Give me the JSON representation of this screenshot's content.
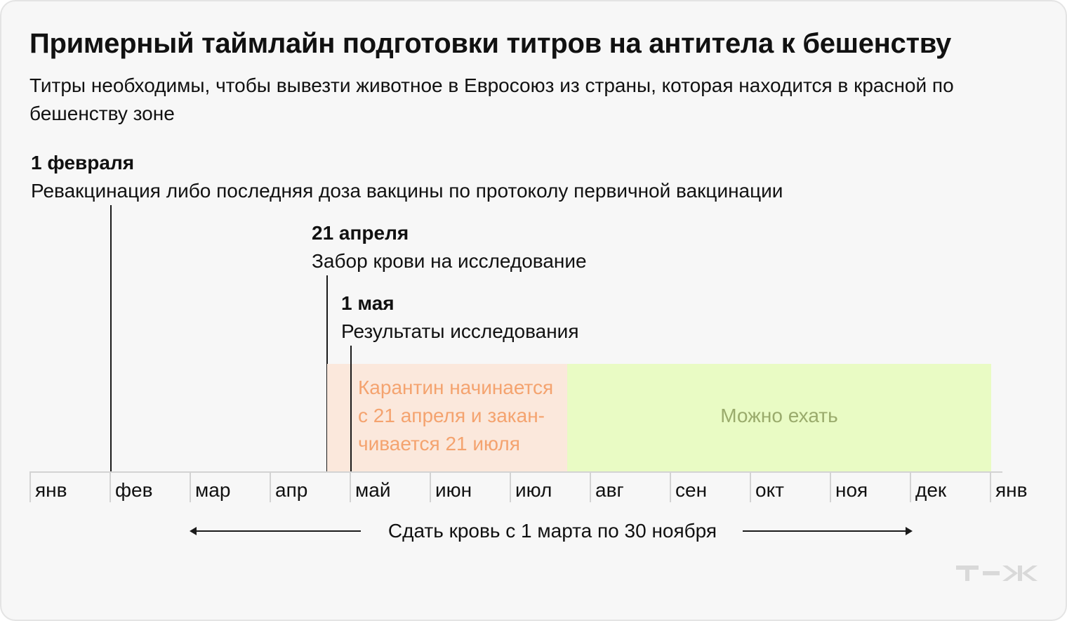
{
  "title": "Примерный таймлайн подготовки титров на антитела к бешенству",
  "subtitle": "Титры необходимы, чтобы вывезти животное в Евросоюз из страны, которая находится в красной по бешенству зоне",
  "events": [
    {
      "date": "1 февраля",
      "text": "Ревакцинация либо последняя доза вакцины по протоколу первичной вакцинации"
    },
    {
      "date": "21 апреля",
      "text": "Забор крови на исследование"
    },
    {
      "date": "1 мая",
      "text": "Результаты исследования"
    }
  ],
  "zones": {
    "quarantine": {
      "lines": [
        "Карантин начинается",
        "с 21 апреля и закан-",
        "чивается 21 июля"
      ],
      "color": "#f4a36f",
      "background": "#fbe8dc"
    },
    "travel": {
      "label": "Можно ехать",
      "color": "#9aab6c",
      "background": "#e9fbc4"
    }
  },
  "months": [
    "янв",
    "фев",
    "мар",
    "апр",
    "май",
    "июн",
    "июл",
    "авг",
    "сен",
    "окт",
    "ноя",
    "дек",
    "янв"
  ],
  "blood_window": {
    "label": "Сдать кровь с 1 марта по 30 ноября"
  },
  "logo": {
    "icon": "tzh-logo-icon",
    "color": "#d9d9d9"
  }
}
